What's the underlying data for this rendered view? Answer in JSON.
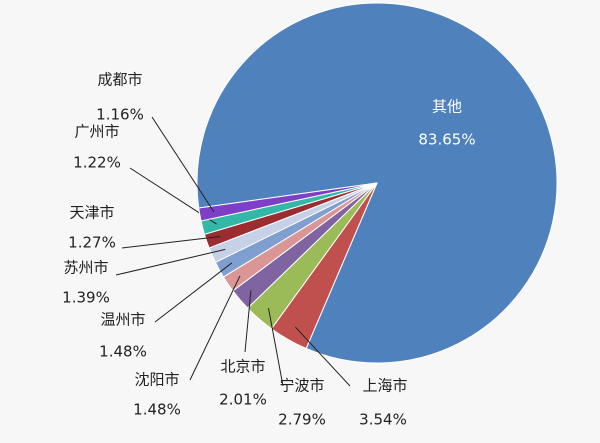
{
  "chart_data": {
    "type": "pie",
    "categories": [
      "其他",
      "上海市",
      "宁波市",
      "北京市",
      "沈阳市",
      "温州市",
      "苏州市",
      "天津市",
      "广州市",
      "成都市"
    ],
    "values": [
      83.65,
      3.54,
      2.79,
      2.01,
      1.48,
      1.48,
      1.39,
      1.27,
      1.22,
      1.16
    ],
    "value_labels": [
      "83.65%",
      "3.54%",
      "2.79%",
      "2.01%",
      "1.48%",
      "1.48%",
      "1.39%",
      "1.27%",
      "1.22%",
      "1.16%"
    ],
    "colors": [
      "#4f81bd",
      "#c0504d",
      "#9bbb59",
      "#8064a2",
      "#d99694",
      "#7f9fd0",
      "#c6d0e6",
      "#9b2d30",
      "#33b8a8",
      "#7d3fc7"
    ]
  }
}
